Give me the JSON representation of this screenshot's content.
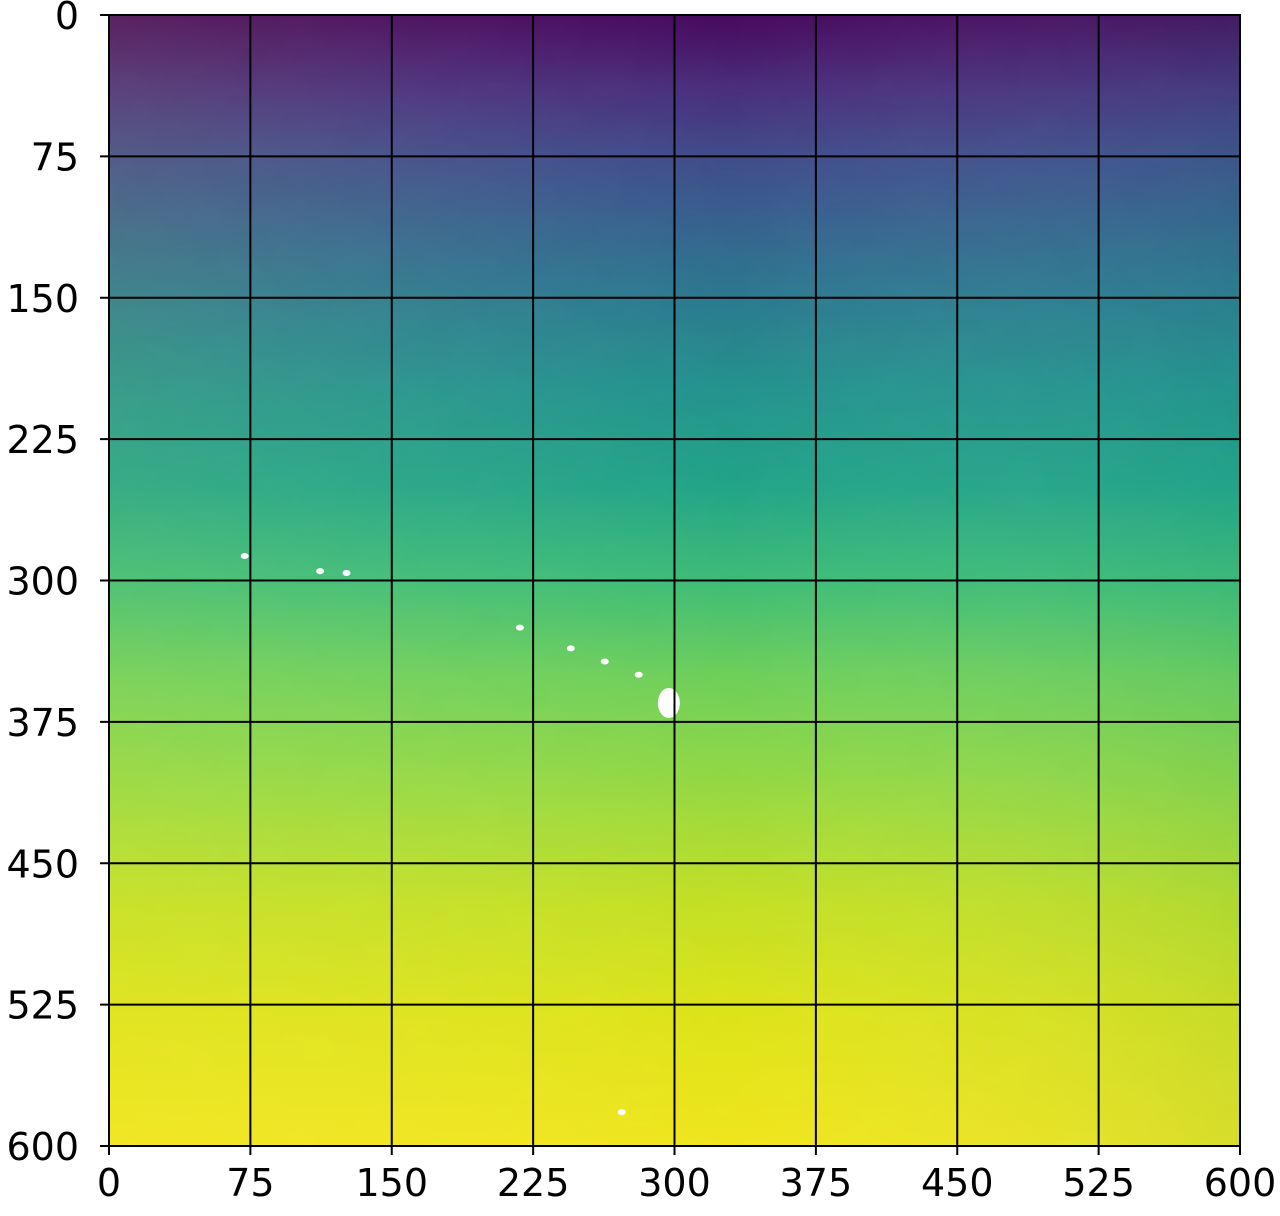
{
  "chart_data": {
    "type": "heatmap",
    "colormap": "viridis",
    "grid": true,
    "title": "",
    "xlabel": "",
    "ylabel": "",
    "xlim": [
      0,
      600
    ],
    "ylim": [
      600,
      0
    ],
    "y_axis_direction": "downward",
    "xticks": [
      0,
      75,
      150,
      225,
      300,
      375,
      450,
      525,
      600
    ],
    "yticks": [
      0,
      75,
      150,
      225,
      300,
      375,
      450,
      525,
      600
    ],
    "xtick_labels": [
      "0",
      "75",
      "150",
      "225",
      "300",
      "375",
      "450",
      "525",
      "600"
    ],
    "ytick_labels": [
      "0",
      "75",
      "150",
      "225",
      "300",
      "375",
      "450",
      "525",
      "600"
    ],
    "gradient_description": "values increase from top (dark purple) to bottom (yellow); bottom-left is brightest, bottom-right slightly greener",
    "color_stops": [
      {
        "y": 0,
        "color": "#46085c"
      },
      {
        "y": 40,
        "color": "#472d7b"
      },
      {
        "y": 75,
        "color": "#3e4a89"
      },
      {
        "y": 115,
        "color": "#33638d"
      },
      {
        "y": 150,
        "color": "#2a788e"
      },
      {
        "y": 200,
        "color": "#22928c"
      },
      {
        "y": 250,
        "color": "#20a386"
      },
      {
        "y": 300,
        "color": "#3cbb75"
      },
      {
        "y": 350,
        "color": "#6cce59"
      },
      {
        "y": 410,
        "color": "#95d840"
      },
      {
        "y": 470,
        "color": "#c2df23"
      },
      {
        "y": 530,
        "color": "#dde318"
      },
      {
        "y": 600,
        "color": "#f0e51c"
      }
    ],
    "missing_value_patches": [
      {
        "x": 297,
        "y": 365
      },
      {
        "x": 245,
        "y": 336
      },
      {
        "x": 263,
        "y": 343
      },
      {
        "x": 281,
        "y": 350
      },
      {
        "x": 218,
        "y": 325
      },
      {
        "x": 112,
        "y": 295
      },
      {
        "x": 72,
        "y": 287
      },
      {
        "x": 126,
        "y": 296
      },
      {
        "x": 272,
        "y": 582
      }
    ]
  }
}
